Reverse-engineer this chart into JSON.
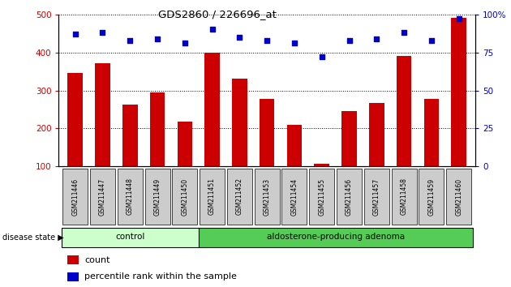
{
  "title": "GDS2860 / 226696_at",
  "samples": [
    "GSM211446",
    "GSM211447",
    "GSM211448",
    "GSM211449",
    "GSM211450",
    "GSM211451",
    "GSM211452",
    "GSM211453",
    "GSM211454",
    "GSM211455",
    "GSM211456",
    "GSM211457",
    "GSM211458",
    "GSM211459",
    "GSM211460"
  ],
  "counts": [
    345,
    372,
    262,
    295,
    218,
    400,
    330,
    277,
    210,
    108,
    245,
    268,
    390,
    278,
    490
  ],
  "percentiles": [
    87,
    88,
    83,
    84,
    81,
    90,
    85,
    83,
    81,
    72,
    83,
    84,
    88,
    83,
    97
  ],
  "control_count": 5,
  "adenoma_count": 10,
  "bar_color": "#cc0000",
  "dot_color": "#0000cc",
  "ylim_left": [
    100,
    500
  ],
  "ylim_right": [
    0,
    100
  ],
  "yticks_left": [
    100,
    200,
    300,
    400,
    500
  ],
  "yticks_right": [
    0,
    25,
    50,
    75,
    100
  ],
  "control_label": "control",
  "adenoma_label": "aldosterone-producing adenoma",
  "disease_state_label": "disease state",
  "legend_count": "count",
  "legend_percentile": "percentile rank within the sample",
  "control_bg": "#ccffcc",
  "adenoma_bg": "#55cc55",
  "sample_bg": "#cccccc",
  "background_color": "#ffffff"
}
